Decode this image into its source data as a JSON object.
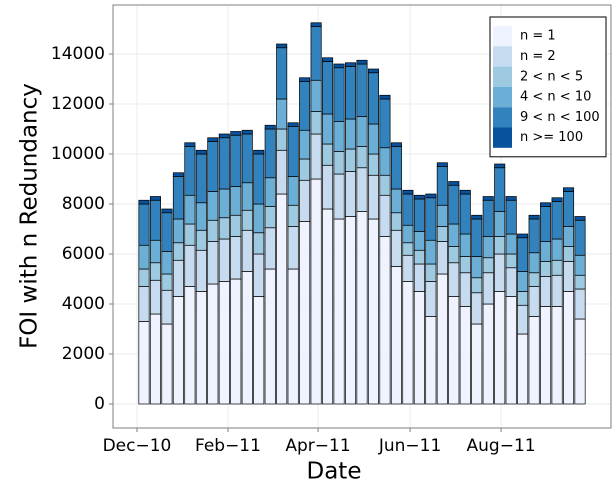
{
  "chart_data": {
    "type": "stacked-bar",
    "xlabel": "Date",
    "ylabel": "FOI with n Redundancy",
    "x": [
      1,
      2,
      3,
      4,
      5,
      6,
      7,
      8,
      9,
      10,
      11,
      12,
      13,
      14,
      15,
      16,
      17,
      18,
      19,
      20,
      21,
      22,
      23,
      24,
      25,
      26,
      27,
      28,
      29,
      30,
      31,
      32,
      33,
      34,
      35,
      36,
      37,
      38,
      39
    ],
    "xlim": [
      -1.7,
      41.7
    ],
    "xticks": [
      {
        "value": 0.39,
        "label": "Dec−10"
      },
      {
        "value": 8.32,
        "label": "Feb−11"
      },
      {
        "value": 16.17,
        "label": "Apr−11"
      },
      {
        "value": 24.19,
        "label": "Jun−11"
      },
      {
        "value": 32.12,
        "label": "Aug−11"
      }
    ],
    "ylim": [
      -960,
      15960
    ],
    "yticks": [
      0,
      2000,
      4000,
      6000,
      8000,
      10000,
      12000,
      14000
    ],
    "grid": true,
    "legend": "top-right",
    "series": [
      {
        "name": "n = 1",
        "color": "#eff3ff",
        "values": [
          3300,
          3600,
          3200,
          4300,
          4700,
          4500,
          4800,
          4900,
          5000,
          5300,
          4300,
          5400,
          8400,
          5400,
          7300,
          9000,
          7800,
          7400,
          7500,
          7700,
          7400,
          6700,
          5500,
          4900,
          4500,
          3500,
          5200,
          4300,
          3900,
          3200,
          4000,
          4500,
          4300,
          2800,
          3500,
          3900,
          3900,
          4500,
          3400
        ]
      },
      {
        "name": "n = 2",
        "color": "#c6dbef",
        "values": [
          1400,
          1350,
          1350,
          1450,
          1650,
          1650,
          1700,
          1700,
          1700,
          1650,
          1700,
          1650,
          1750,
          1700,
          1650,
          1800,
          1750,
          1800,
          1800,
          1750,
          1750,
          1650,
          1450,
          1050,
          1100,
          1400,
          1300,
          1350,
          1350,
          1250,
          1250,
          1500,
          1150,
          1150,
          1200,
          1200,
          1250,
          1200,
          1200
        ]
      },
      {
        "name": "2 < n < 5",
        "color": "#9ecae1",
        "values": [
          700,
          700,
          650,
          700,
          850,
          800,
          850,
          850,
          850,
          800,
          850,
          850,
          850,
          850,
          850,
          900,
          850,
          900,
          900,
          850,
          850,
          800,
          700,
          500,
          550,
          700,
          600,
          650,
          650,
          600,
          600,
          700,
          550,
          550,
          550,
          600,
          600,
          600,
          550
        ]
      },
      {
        "name": "4 < n < 10",
        "color": "#6baed6",
        "values": [
          950,
          900,
          900,
          950,
          1150,
          1100,
          1150,
          1150,
          1150,
          1100,
          1150,
          1150,
          1200,
          1150,
          1150,
          1250,
          1200,
          1200,
          1200,
          1200,
          1200,
          1100,
          950,
          700,
          750,
          950,
          850,
          900,
          900,
          850,
          850,
          1000,
          800,
          800,
          800,
          800,
          850,
          800,
          800
        ]
      },
      {
        "name": "9 < n < 100",
        "color": "#3182bd",
        "values": [
          1650,
          1600,
          1550,
          1700,
          1950,
          1950,
          2000,
          2050,
          2050,
          1950,
          2000,
          1950,
          2050,
          2000,
          1950,
          2150,
          2100,
          2150,
          2100,
          2100,
          2050,
          1950,
          1700,
          1250,
          1300,
          1700,
          1550,
          1550,
          1600,
          1500,
          1450,
          1750,
          1350,
          1350,
          1350,
          1400,
          1500,
          1400,
          1400
        ]
      },
      {
        "name": "n >= 100",
        "color": "#08519c",
        "values": [
          150,
          150,
          150,
          150,
          150,
          150,
          150,
          150,
          150,
          150,
          150,
          150,
          150,
          150,
          150,
          150,
          150,
          150,
          150,
          150,
          150,
          150,
          150,
          150,
          150,
          150,
          150,
          150,
          150,
          150,
          150,
          150,
          150,
          150,
          150,
          150,
          150,
          150,
          150
        ]
      }
    ]
  }
}
